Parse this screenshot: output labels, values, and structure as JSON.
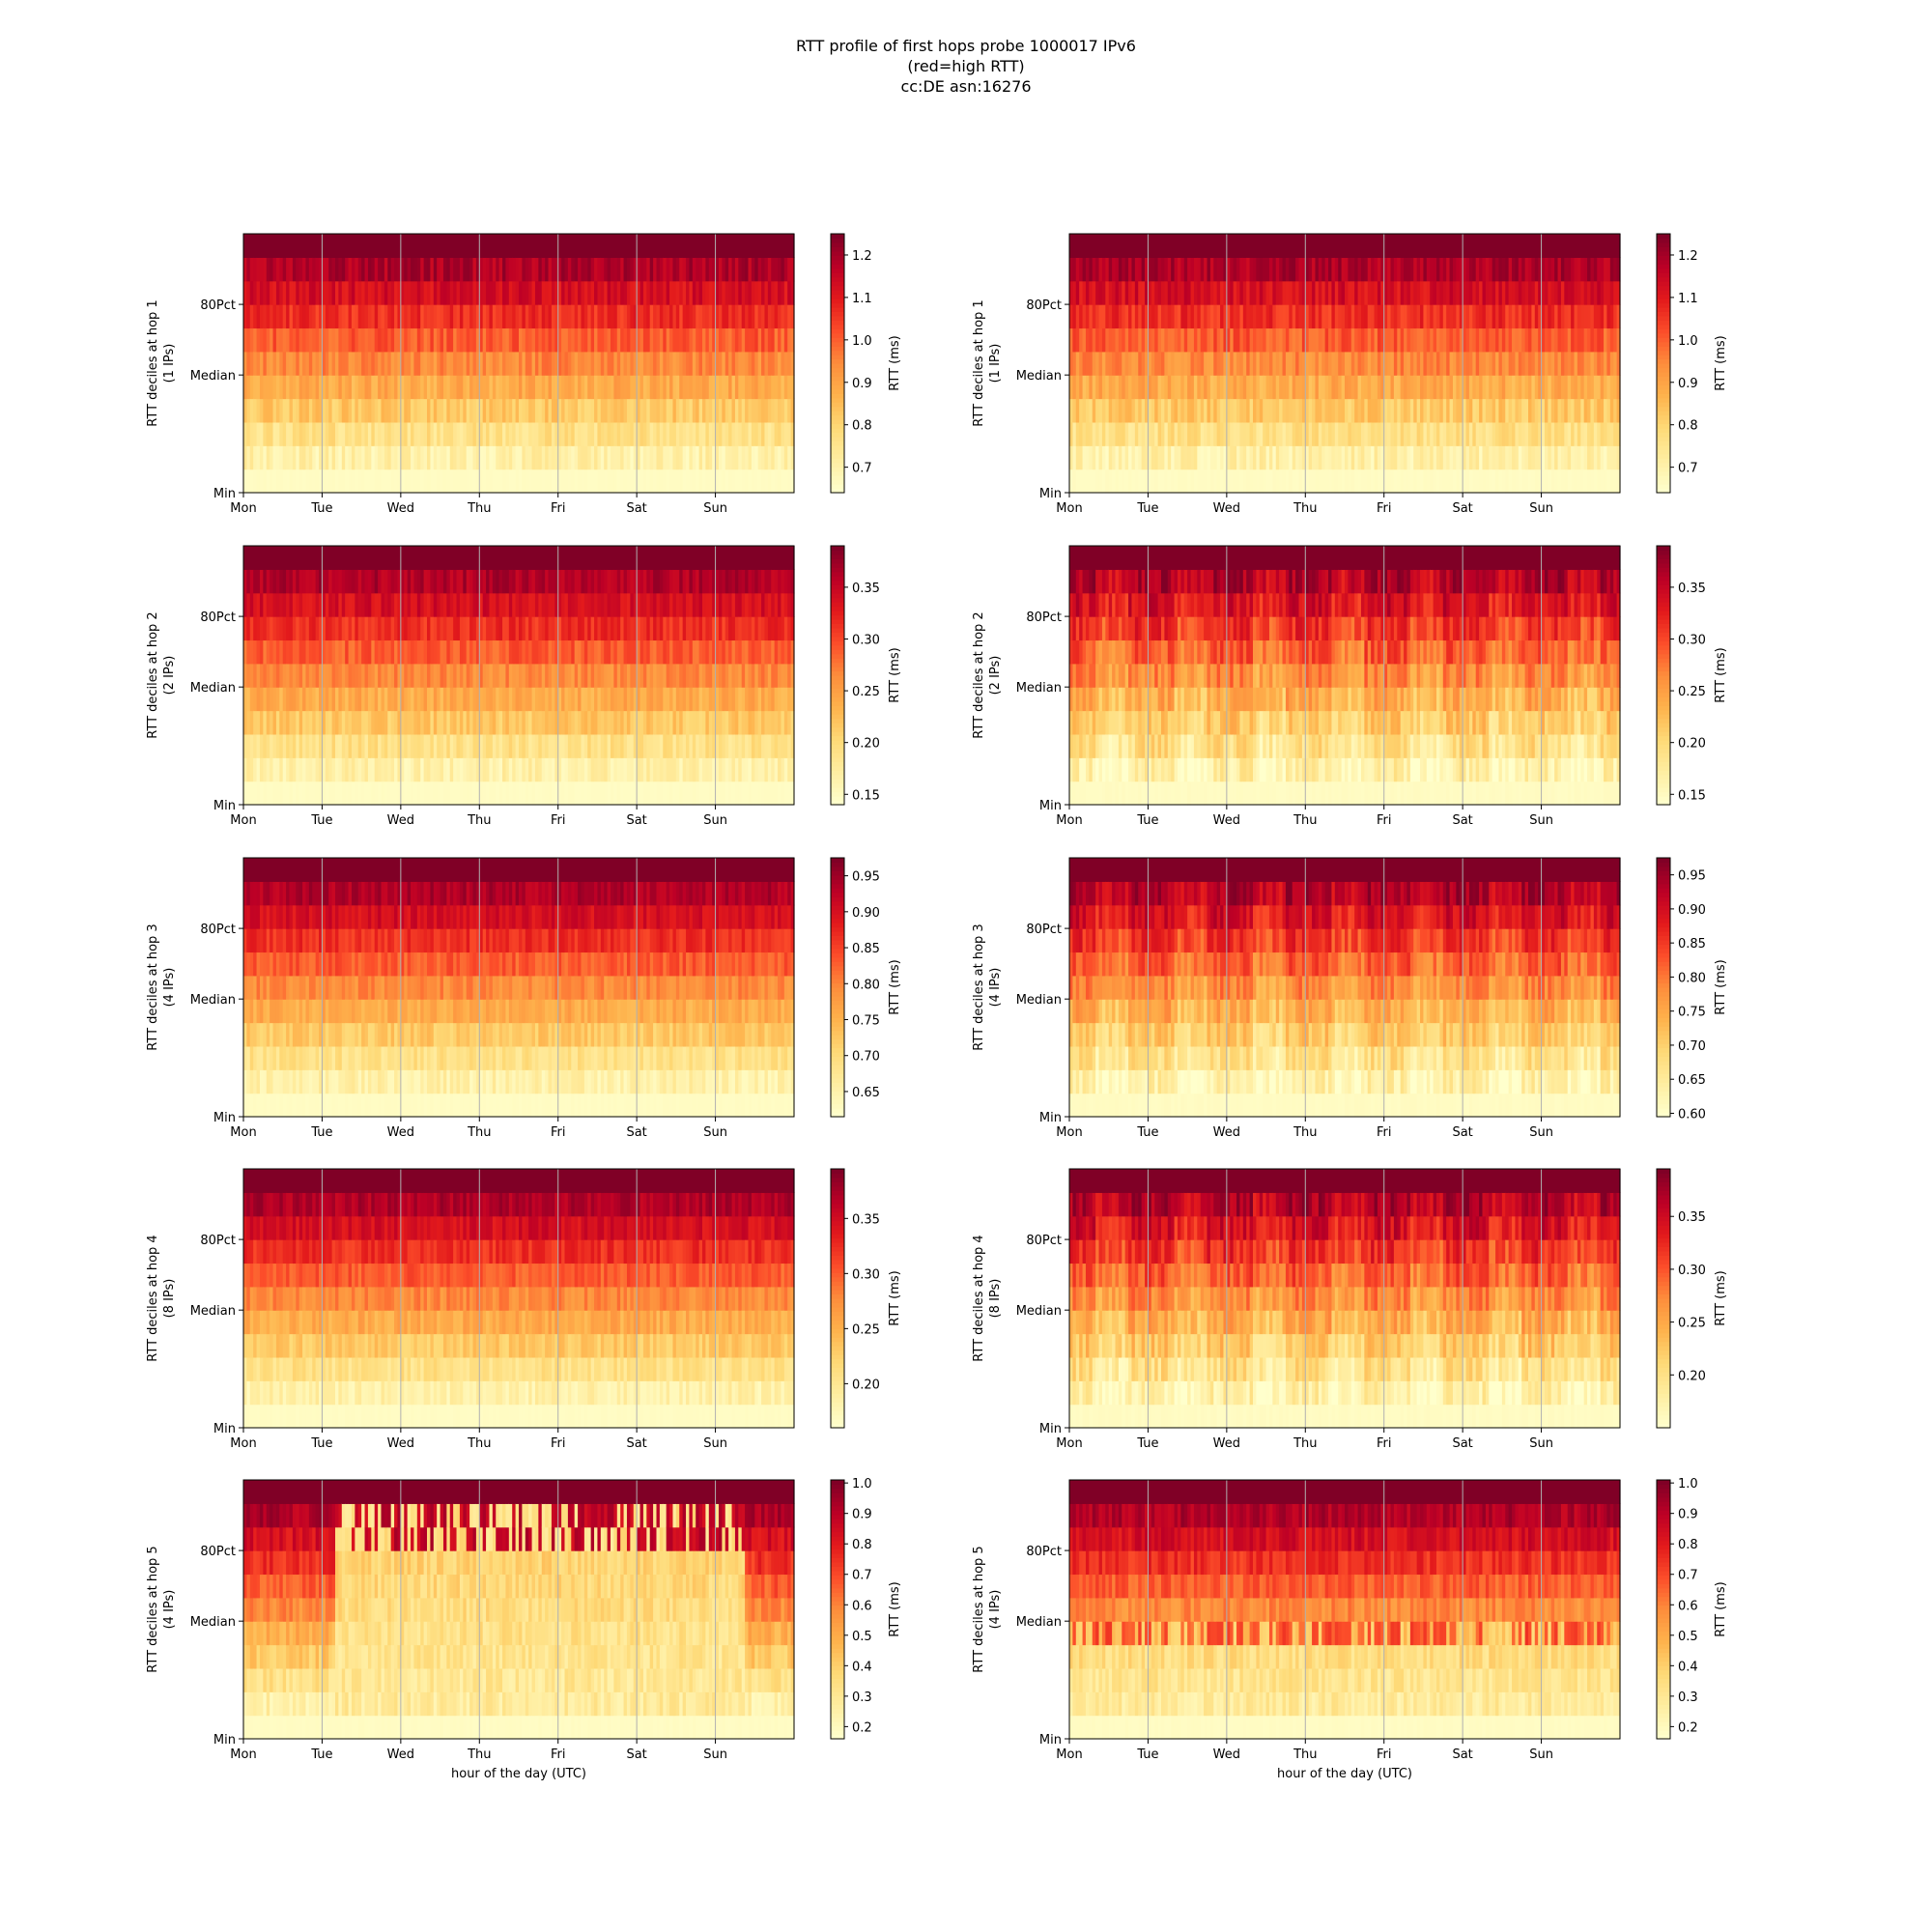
{
  "title": {
    "line1": "RTT profile of first hops probe 1000017 IPv6",
    "line2": "(red=high RTT)",
    "line3": "cc:DE asn:16276"
  },
  "colors": {
    "colormap": "YlOrRd",
    "stops": [
      "#ffffcc",
      "#ffeda0",
      "#fed976",
      "#feb24c",
      "#fd8d3c",
      "#fc4e2a",
      "#e31a1c",
      "#bd0026",
      "#800026"
    ],
    "grid": "#b0b0b0"
  },
  "chart_data": [
    {
      "type": "heatmap",
      "hop": 1,
      "column": "left",
      "ylabel": "RTT deciles at hop 1",
      "ylabel2": "(1 IPs)",
      "yticks": [
        "Min",
        "Median",
        "80Pct"
      ],
      "xticks": [
        "Mon",
        "Tue",
        "Wed",
        "Thu",
        "Fri",
        "Sat",
        "Sun"
      ],
      "xlabel": "",
      "colorbar": {
        "label": "RTT (ms)",
        "range": [
          0.64,
          1.25
        ],
        "ticks": [
          "0.7",
          "0.8",
          "0.9",
          "1.0",
          "1.1",
          "1.2"
        ],
        "tick_values": [
          0.7,
          0.8,
          0.9,
          1.0,
          1.1,
          1.2
        ]
      },
      "grid": true,
      "pattern": "uniform",
      "jitter": 0.15
    },
    {
      "type": "heatmap",
      "hop": 1,
      "column": "right",
      "ylabel": "RTT deciles at hop 1",
      "ylabel2": "(1 IPs)",
      "yticks": [
        "Min",
        "Median",
        "80Pct"
      ],
      "xticks": [
        "Mon",
        "Tue",
        "Wed",
        "Thu",
        "Fri",
        "Sat",
        "Sun"
      ],
      "xlabel": "",
      "colorbar": {
        "label": "RTT (ms)",
        "range": [
          0.64,
          1.25
        ],
        "ticks": [
          "0.7",
          "0.8",
          "0.9",
          "1.0",
          "1.1",
          "1.2"
        ],
        "tick_values": [
          0.7,
          0.8,
          0.9,
          1.0,
          1.1,
          1.2
        ]
      },
      "grid": true,
      "pattern": "uniform",
      "jitter": 0.16
    },
    {
      "type": "heatmap",
      "hop": 2,
      "column": "left",
      "ylabel": "RTT deciles at hop 2",
      "ylabel2": "(2 IPs)",
      "yticks": [
        "Min",
        "Median",
        "80Pct"
      ],
      "xticks": [
        "Mon",
        "Tue",
        "Wed",
        "Thu",
        "Fri",
        "Sat",
        "Sun"
      ],
      "xlabel": "",
      "colorbar": {
        "label": "RTT (ms)",
        "range": [
          0.14,
          0.39
        ],
        "ticks": [
          "0.15",
          "0.20",
          "0.25",
          "0.30",
          "0.35"
        ],
        "tick_values": [
          0.15,
          0.2,
          0.25,
          0.3,
          0.35
        ]
      },
      "grid": true,
      "pattern": "uniform",
      "jitter": 0.14
    },
    {
      "type": "heatmap",
      "hop": 2,
      "column": "right",
      "ylabel": "RTT deciles at hop 2",
      "ylabel2": "(2 IPs)",
      "yticks": [
        "Min",
        "Median",
        "80Pct"
      ],
      "xticks": [
        "Mon",
        "Tue",
        "Wed",
        "Thu",
        "Fri",
        "Sat",
        "Sun"
      ],
      "xlabel": "",
      "colorbar": {
        "label": "RTT (ms)",
        "range": [
          0.14,
          0.39
        ],
        "ticks": [
          "0.15",
          "0.20",
          "0.25",
          "0.30",
          "0.35"
        ],
        "tick_values": [
          0.15,
          0.2,
          0.25,
          0.3,
          0.35
        ]
      },
      "grid": true,
      "pattern": "periodic",
      "jitter": 0.2
    },
    {
      "type": "heatmap",
      "hop": 3,
      "column": "left",
      "ylabel": "RTT deciles at hop 3",
      "ylabel2": "(4 IPs)",
      "yticks": [
        "Min",
        "Median",
        "80Pct"
      ],
      "xticks": [
        "Mon",
        "Tue",
        "Wed",
        "Thu",
        "Fri",
        "Sat",
        "Sun"
      ],
      "xlabel": "",
      "colorbar": {
        "label": "RTT (ms)",
        "range": [
          0.615,
          0.975
        ],
        "ticks": [
          "0.65",
          "0.70",
          "0.75",
          "0.80",
          "0.85",
          "0.90",
          "0.95"
        ],
        "tick_values": [
          0.65,
          0.7,
          0.75,
          0.8,
          0.85,
          0.9,
          0.95
        ]
      },
      "grid": true,
      "pattern": "uniform",
      "jitter": 0.13
    },
    {
      "type": "heatmap",
      "hop": 3,
      "column": "right",
      "ylabel": "RTT deciles at hop 3",
      "ylabel2": "(4 IPs)",
      "yticks": [
        "Min",
        "Median",
        "80Pct"
      ],
      "xticks": [
        "Mon",
        "Tue",
        "Wed",
        "Thu",
        "Fri",
        "Sat",
        "Sun"
      ],
      "xlabel": "",
      "colorbar": {
        "label": "RTT (ms)",
        "range": [
          0.595,
          0.975
        ],
        "ticks": [
          "0.60",
          "0.65",
          "0.70",
          "0.75",
          "0.80",
          "0.85",
          "0.90",
          "0.95"
        ],
        "tick_values": [
          0.6,
          0.65,
          0.7,
          0.75,
          0.8,
          0.85,
          0.9,
          0.95
        ]
      },
      "grid": true,
      "pattern": "periodic",
      "jitter": 0.18
    },
    {
      "type": "heatmap",
      "hop": 4,
      "column": "left",
      "ylabel": "RTT deciles at hop 4",
      "ylabel2": "(8 IPs)",
      "yticks": [
        "Min",
        "Median",
        "80Pct"
      ],
      "xticks": [
        "Mon",
        "Tue",
        "Wed",
        "Thu",
        "Fri",
        "Sat",
        "Sun"
      ],
      "xlabel": "",
      "colorbar": {
        "label": "RTT (ms)",
        "range": [
          0.16,
          0.395
        ],
        "ticks": [
          "0.20",
          "0.25",
          "0.30",
          "0.35"
        ],
        "tick_values": [
          0.2,
          0.25,
          0.3,
          0.35
        ]
      },
      "grid": true,
      "pattern": "uniform",
      "jitter": 0.13
    },
    {
      "type": "heatmap",
      "hop": 4,
      "column": "right",
      "ylabel": "RTT deciles at hop 4",
      "ylabel2": "(8 IPs)",
      "yticks": [
        "Min",
        "Median",
        "80Pct"
      ],
      "xticks": [
        "Mon",
        "Tue",
        "Wed",
        "Thu",
        "Fri",
        "Sat",
        "Sun"
      ],
      "xlabel": "",
      "colorbar": {
        "label": "RTT (ms)",
        "range": [
          0.15,
          0.395
        ],
        "ticks": [
          "0.20",
          "0.25",
          "0.30",
          "0.35"
        ],
        "tick_values": [
          0.2,
          0.25,
          0.3,
          0.35
        ]
      },
      "grid": true,
      "pattern": "periodic",
      "jitter": 0.2
    },
    {
      "type": "heatmap",
      "hop": 5,
      "column": "left",
      "ylabel": "RTT deciles at hop 5",
      "ylabel2": "(4 IPs)",
      "yticks": [
        "Min",
        "Median",
        "80Pct"
      ],
      "xticks": [
        "Mon",
        "Tue",
        "Wed",
        "Thu",
        "Fri",
        "Sat",
        "Sun"
      ],
      "xlabel": "hour of the day (UTC)",
      "colorbar": {
        "label": "RTT (ms)",
        "range": [
          0.16,
          1.01
        ],
        "ticks": [
          "0.2",
          "0.3",
          "0.4",
          "0.5",
          "0.6",
          "0.7",
          "0.8",
          "0.9",
          "1.0"
        ],
        "tick_values": [
          0.2,
          0.3,
          0.4,
          0.5,
          0.6,
          0.7,
          0.8,
          0.9,
          1.0
        ]
      },
      "grid": true,
      "pattern": "dip",
      "dip_range": [
        "Tue",
        "Sun"
      ],
      "jitter": 0.15
    },
    {
      "type": "heatmap",
      "hop": 5,
      "column": "right",
      "ylabel": "RTT deciles at hop 5",
      "ylabel2": "(4 IPs)",
      "yticks": [
        "Min",
        "Median",
        "80Pct"
      ],
      "xticks": [
        "Mon",
        "Tue",
        "Wed",
        "Thu",
        "Fri",
        "Sat",
        "Sun"
      ],
      "xlabel": "hour of the day (UTC)",
      "colorbar": {
        "label": "RTT (ms)",
        "range": [
          0.16,
          1.01
        ],
        "ticks": [
          "0.2",
          "0.3",
          "0.4",
          "0.5",
          "0.6",
          "0.7",
          "0.8",
          "0.9",
          "1.0"
        ],
        "tick_values": [
          0.2,
          0.3,
          0.4,
          0.5,
          0.6,
          0.7,
          0.8,
          0.9,
          1.0
        ]
      },
      "grid": true,
      "pattern": "median-mix",
      "jitter": 0.15
    }
  ]
}
